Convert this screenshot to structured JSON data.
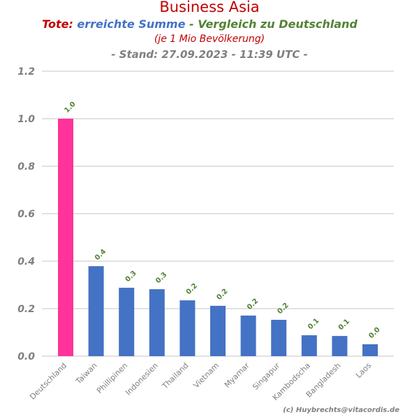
{
  "chart_data": {
    "type": "bar",
    "title": "Business Asia",
    "subtitle_parts": {
      "a": "Tote:",
      "b": "erreichte Summe",
      "c": " - Vergleich zu Deutschland"
    },
    "subtitle2": "(je 1 Mio Bevölkerung)",
    "subtitle3": "- Stand: 27.09.2023 - 11:39 UTC -",
    "categories": [
      "Deutschland",
      "Taiwan",
      "Phillipinen",
      "Indonesien",
      "Thailand",
      "Vietnam",
      "Myamar",
      "Singapur",
      "Kambodscha",
      "Bangladesh",
      "Laos"
    ],
    "values": [
      1.0,
      0.379,
      0.288,
      0.282,
      0.235,
      0.212,
      0.171,
      0.153,
      0.088,
      0.085,
      0.05
    ],
    "data_labels": [
      "1.0",
      "0.4",
      "0.3",
      "0.3",
      "0.2",
      "0.2",
      "0.2",
      "0.2",
      "0.1",
      "0.1",
      "0.0"
    ],
    "yticks": [
      "0.0",
      "0.2",
      "0.4",
      "0.6",
      "0.8",
      "1.0",
      "1.2"
    ],
    "ylim": [
      0,
      1.2
    ],
    "grid": true,
    "colors": {
      "highlight": "#ff3399",
      "bar": "#4472c4",
      "label": "#548235",
      "title": "#c00000",
      "grid": "#d9d9d9",
      "axis_text": "#7f7f7f"
    },
    "credit": "(c) Huybrechts@vitacordis.de"
  }
}
